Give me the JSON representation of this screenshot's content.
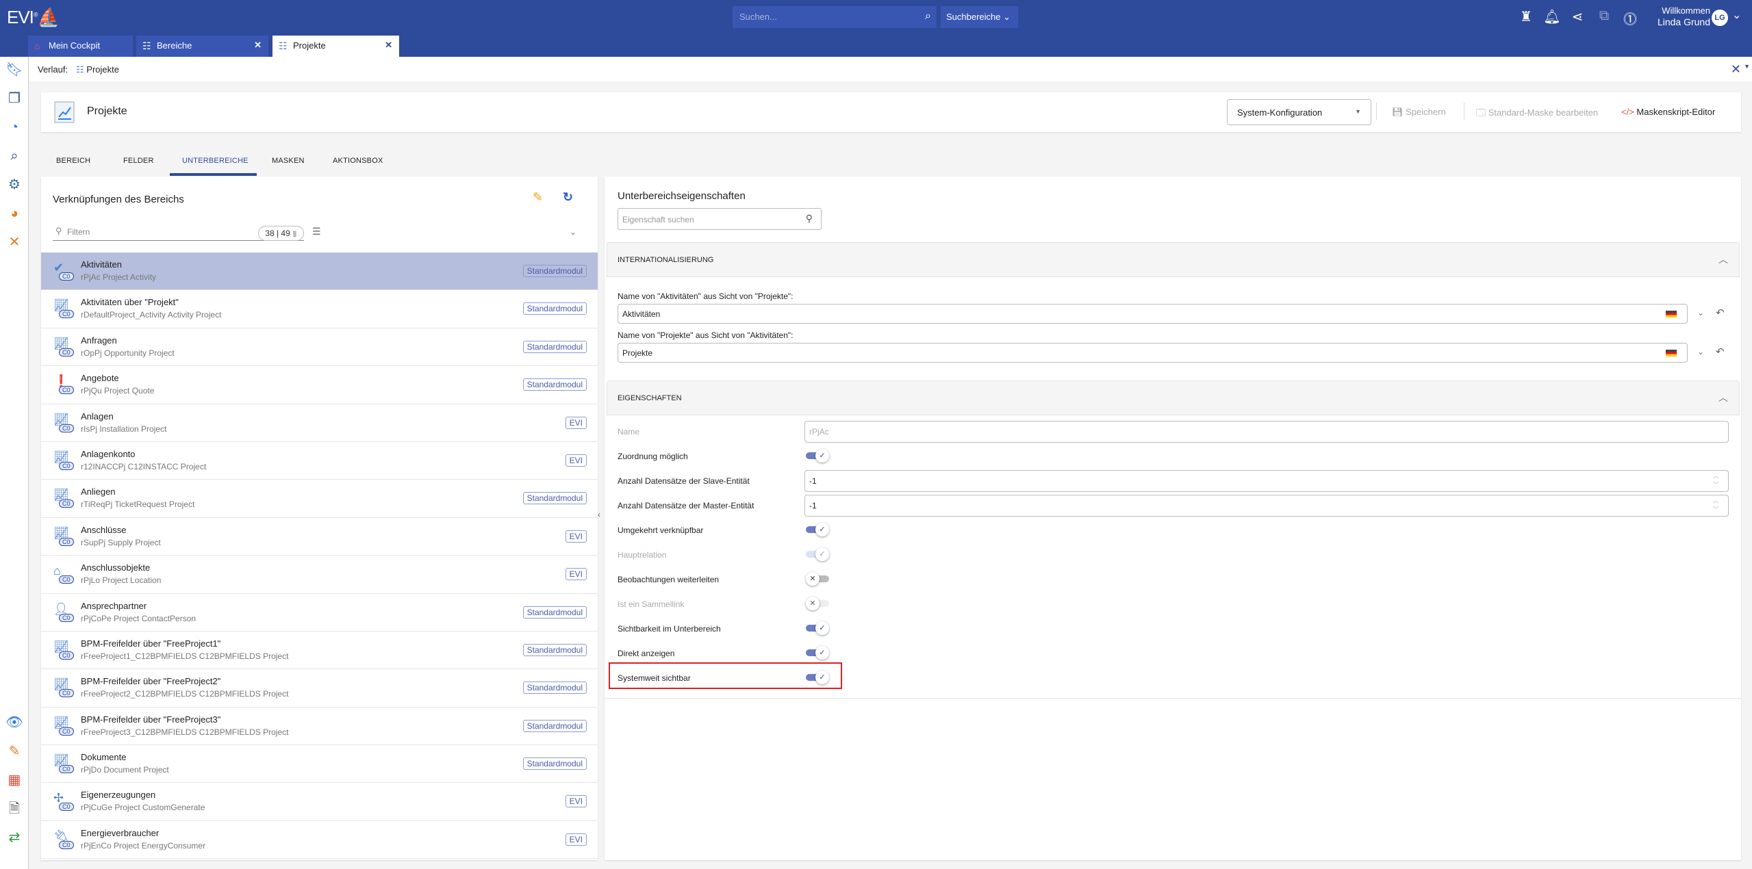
{
  "header": {
    "logo": "EVI",
    "search_placeholder": "Suchen...",
    "search_scope": "Suchbereiche",
    "welcome": "Willkommen",
    "user_name": "Linda Grund",
    "avatar_initials": "LG",
    "icons": [
      "lighthouse-icon",
      "bell-icon",
      "share-icon",
      "external-link-icon",
      "more-icon"
    ],
    "color": "#2E4A9A"
  },
  "tabs": [
    {
      "label": "Mein Cockpit",
      "icon": "home-icon",
      "closable": false
    },
    {
      "label": "Bereiche",
      "icon": "hierarchy-icon",
      "closable": true
    },
    {
      "label": "Projekte",
      "icon": "hierarchy-icon",
      "closable": true,
      "active": true
    }
  ],
  "history": {
    "label": "Verlauf:",
    "crumb": "Projekte"
  },
  "sidebar_icons": [
    "bookmark-icon",
    "windows-icon",
    "history-icon",
    "search-list-icon",
    "settings-icon",
    "report-icon",
    "tools-icon",
    "watch-star-icon",
    "clipboard-edit-icon",
    "calendar-icon",
    "document-settings-icon",
    "sync-icon"
  ],
  "titlebar": {
    "title": "Projekte",
    "config_select": "System-Konfiguration",
    "save": "Speichern",
    "edit_mask": "Standard-Maske bearbeiten",
    "script_editor": "Maskenskript-Editor"
  },
  "main_tabs": [
    "BEREICH",
    "FELDER",
    "UNTERBEREICHE",
    "MASKEN",
    "AKTIONSBOX"
  ],
  "active_main_tab": "UNTERBEREICHE",
  "links_panel": {
    "title": "Verknüpfungen des Bereichs",
    "filter_placeholder": "Filtern",
    "count": "38 | 49",
    "icon_badge": "C0",
    "items": [
      {
        "name": "Aktivitäten",
        "sub": "rPjAc Project Activity",
        "badge": "Standardmodul",
        "icon": "activity-icon",
        "selected": true
      },
      {
        "name": "Aktivitäten über \"Projekt\"",
        "sub": "rDefaultProject_Activity Activity Project",
        "badge": "Standardmodul",
        "icon": "chart-doc-icon"
      },
      {
        "name": "Anfragen",
        "sub": "rOpPj Opportunity Project",
        "badge": "Standardmodul",
        "icon": "chart-doc-icon"
      },
      {
        "name": "Angebote",
        "sub": "rPjQu Project Quote",
        "badge": "Standardmodul",
        "icon": "quote-icon"
      },
      {
        "name": "Anlagen",
        "sub": "rIsPj Installation Project",
        "badge": "EVI",
        "icon": "chart-doc-icon"
      },
      {
        "name": "Anlagenkonto",
        "sub": "r12INACCPj C12INSTACC Project",
        "badge": "EVI",
        "icon": "chart-doc-icon"
      },
      {
        "name": "Anliegen",
        "sub": "rTiReqPj TicketRequest Project",
        "badge": "Standardmodul",
        "icon": "chart-doc-icon"
      },
      {
        "name": "Anschlüsse",
        "sub": "rSupPj Supply Project",
        "badge": "EVI",
        "icon": "chart-doc-icon"
      },
      {
        "name": "Anschlussobjekte",
        "sub": "rPjLo Project Location",
        "badge": "EVI",
        "icon": "house-icon"
      },
      {
        "name": "Ansprechpartner",
        "sub": "rPjCoPe Project ContactPerson",
        "badge": "Standardmodul",
        "icon": "person-icon"
      },
      {
        "name": "BPM-Freifelder über \"FreeProject1\"",
        "sub": "rFreeProject1_C12BPMFIELDS C12BPMFIELDS Project",
        "badge": "Standardmodul",
        "icon": "chart-doc-icon"
      },
      {
        "name": "BPM-Freifelder über \"FreeProject2\"",
        "sub": "rFreeProject2_C12BPMFIELDS C12BPMFIELDS Project",
        "badge": "Standardmodul",
        "icon": "chart-doc-icon"
      },
      {
        "name": "BPM-Freifelder über \"FreeProject3\"",
        "sub": "rFreeProject3_C12BPMFIELDS C12BPMFIELDS Project",
        "badge": "Standardmodul",
        "icon": "chart-doc-icon"
      },
      {
        "name": "Dokumente",
        "sub": "rPjDo Document Project",
        "badge": "Standardmodul",
        "icon": "chart-doc-icon"
      },
      {
        "name": "Eigenerzeugungen",
        "sub": "rPjCuGe Project CustomGenerate",
        "badge": "EVI",
        "icon": "wind-turbine-icon"
      },
      {
        "name": "Energieverbraucher",
        "sub": "rPjEnCo Project EnergyConsumer",
        "badge": "EVI",
        "icon": "plug-icon"
      }
    ]
  },
  "props_panel": {
    "title": "Unterbereichseigenschaften",
    "search_placeholder": "Eigenschaft suchen",
    "intl": {
      "header": "INTERNATIONALISIERUNG",
      "label1": "Name von \"Aktivitäten\" aus Sicht von \"Projekte\":",
      "value1": "Aktivitäten",
      "label2": "Name von \"Projekte\" aus Sicht von \"Aktivitäten\":",
      "value2": "Projekte"
    },
    "props_header": "EIGENSCHAFTEN",
    "props": [
      {
        "label": "Name",
        "type": "text",
        "value": "rPjAc",
        "disabled": true
      },
      {
        "label": "Zuordnung möglich",
        "type": "toggle",
        "on": true
      },
      {
        "label": "Anzahl Datensätze der Slave-Entität",
        "type": "number",
        "value": "-1"
      },
      {
        "label": "Anzahl Datensätze der Master-Entität",
        "type": "number",
        "value": "-1"
      },
      {
        "label": "Umgekehrt verknüpfbar",
        "type": "toggle",
        "on": true
      },
      {
        "label": "Hauptrelation",
        "type": "toggle",
        "on": true,
        "disabled": true
      },
      {
        "label": "Beobachtungen weiterleiten",
        "type": "toggle",
        "on": false
      },
      {
        "label": "Ist ein Sammellink",
        "type": "toggle",
        "on": false,
        "disabled": true
      },
      {
        "label": "Sichtbarkeit im Unterbereich",
        "type": "toggle",
        "on": true
      },
      {
        "label": "Direkt anzeigen",
        "type": "toggle",
        "on": true
      },
      {
        "label": "Systemweit sichtbar",
        "type": "toggle",
        "on": true,
        "highlighted": true
      }
    ],
    "highlight_color": "#E02020"
  }
}
